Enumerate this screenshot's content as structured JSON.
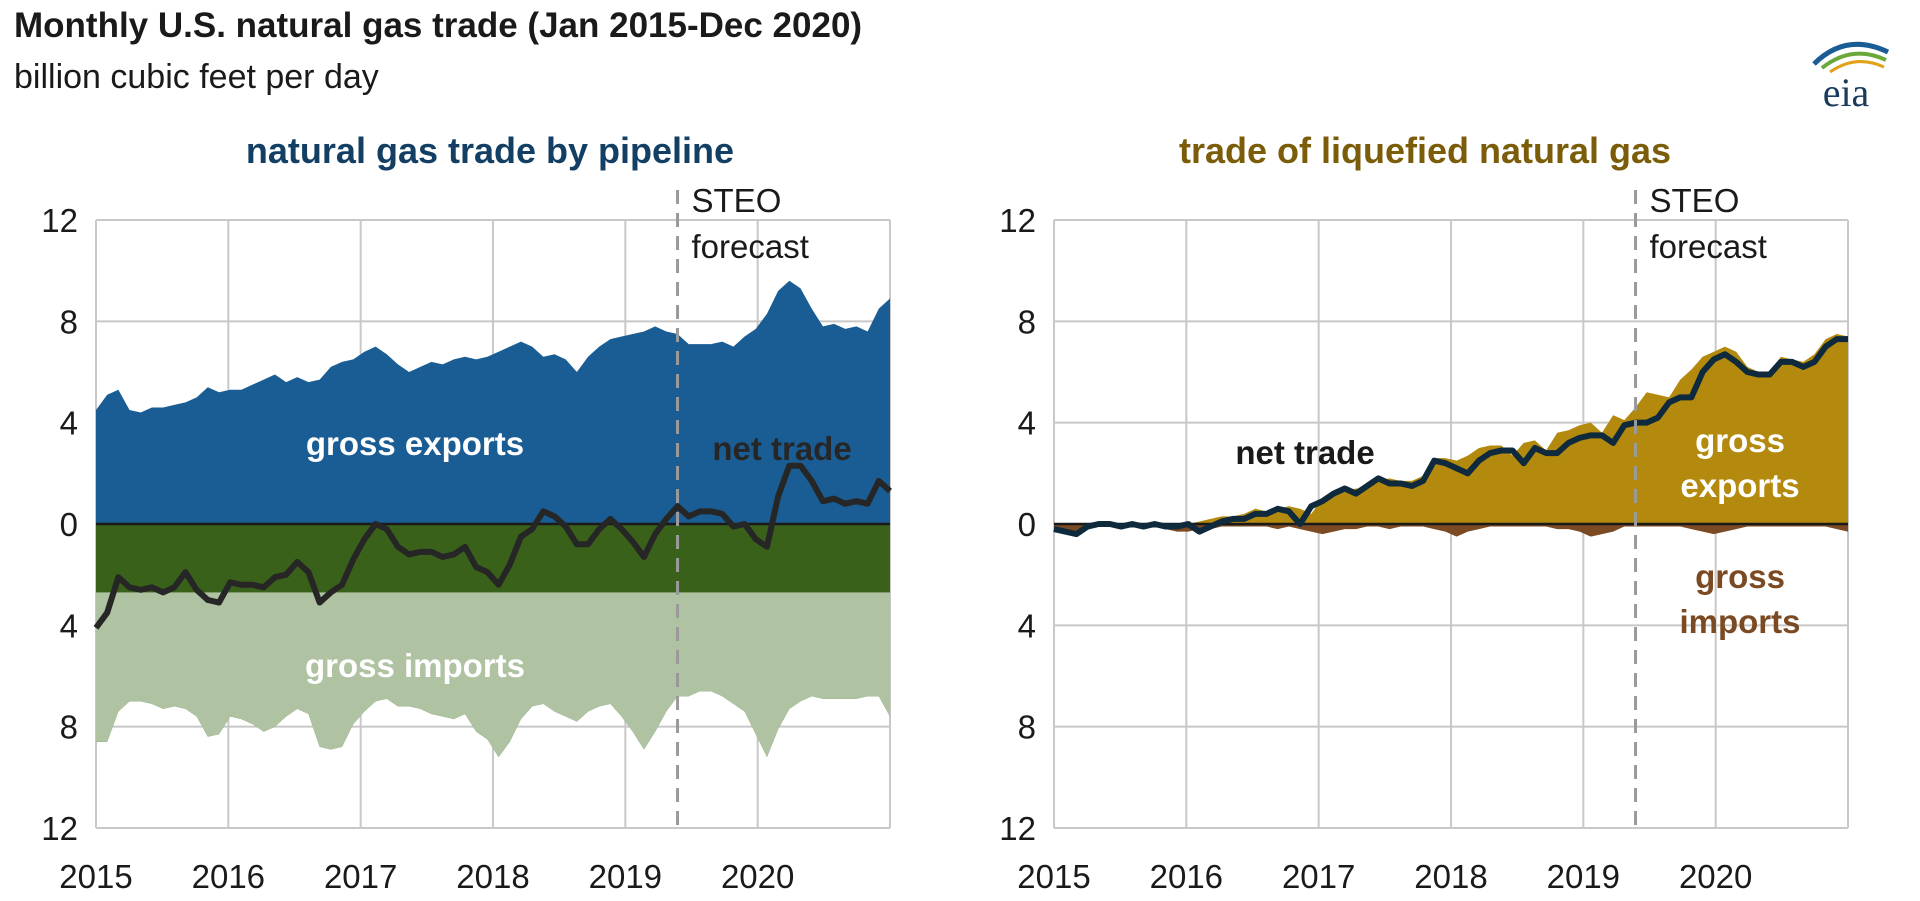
{
  "header": {
    "title": "Monthly U.S. natural gas trade (Jan 2015-Dec 2020)",
    "subtitle": "billion cubic feet per day",
    "logo_text": "eia"
  },
  "colors": {
    "pipeline_exports": "#1a5d94",
    "pipeline_imports": "#3a6119",
    "pipeline_imports_pale": "#afc2a2",
    "lng_exports": "#b38a0d",
    "lng_imports": "#7b4a22",
    "net_trade_pipeline": "#262626",
    "net_trade_lng": "#0f2a3d",
    "grid": "#c8c8c8",
    "forecast_line": "#9a9a9a",
    "pipeline_title": "#123f63",
    "lng_title": "#7a5c09"
  },
  "chart_data": [
    {
      "type": "area",
      "title": "natural gas trade by pipeline",
      "x_start": "2015-01",
      "x_end": "2020-12",
      "xlim": [
        2015,
        2021
      ],
      "ylim": [
        -12,
        12
      ],
      "y_ticks": [
        12,
        8,
        4,
        0,
        4,
        8,
        12
      ],
      "x_ticks": [
        "2015",
        "2016",
        "2017",
        "2018",
        "2019",
        "2020"
      ],
      "grid": true,
      "forecast_start": "2019-05",
      "forecast_label": [
        "STEO",
        "forecast"
      ],
      "labels": {
        "exports": "gross exports",
        "imports": "gross imports",
        "net": "net trade"
      },
      "series": [
        {
          "name": "gross exports",
          "values": [
            4.5,
            5.1,
            5.3,
            4.5,
            4.4,
            4.6,
            4.6,
            4.7,
            4.8,
            5.0,
            5.4,
            5.2,
            5.3,
            5.3,
            5.5,
            5.7,
            5.9,
            5.6,
            5.8,
            5.6,
            5.7,
            6.2,
            6.4,
            6.5,
            6.8,
            7.0,
            6.7,
            6.3,
            6.0,
            6.2,
            6.4,
            6.3,
            6.5,
            6.6,
            6.5,
            6.6,
            6.8,
            7.0,
            7.2,
            7.0,
            6.6,
            6.7,
            6.5,
            6.0,
            6.6,
            7.0,
            7.3,
            7.4,
            7.5,
            7.6,
            7.8,
            7.6,
            7.5,
            7.1,
            7.1,
            7.1,
            7.2,
            7.0,
            7.4,
            7.7,
            8.3,
            9.2,
            9.6,
            9.3,
            8.5,
            7.8,
            7.9,
            7.7,
            7.8,
            7.6,
            8.5,
            8.9
          ]
        },
        {
          "name": "gross imports",
          "values": [
            8.6,
            8.6,
            7.4,
            7.0,
            7.0,
            7.1,
            7.3,
            7.2,
            7.3,
            7.6,
            8.4,
            8.3,
            7.6,
            7.7,
            7.9,
            8.2,
            8.0,
            7.6,
            7.3,
            7.5,
            8.8,
            8.9,
            8.8,
            7.9,
            7.4,
            7.0,
            6.9,
            7.2,
            7.2,
            7.3,
            7.5,
            7.6,
            7.7,
            7.5,
            8.2,
            8.5,
            9.2,
            8.6,
            7.7,
            7.2,
            7.1,
            7.4,
            7.6,
            7.8,
            7.4,
            7.2,
            7.1,
            7.6,
            8.2,
            8.9,
            8.2,
            7.4,
            6.8,
            6.8,
            6.6,
            6.6,
            6.8,
            7.1,
            7.4,
            8.3,
            9.2,
            8.1,
            7.3,
            7.0,
            6.8,
            6.9,
            6.9,
            6.9,
            6.9,
            6.8,
            6.8,
            7.6
          ]
        },
        {
          "name": "net trade",
          "values": [
            -4.1,
            -3.5,
            -2.1,
            -2.5,
            -2.6,
            -2.5,
            -2.7,
            -2.5,
            -1.9,
            -2.6,
            -3.0,
            -3.1,
            -2.3,
            -2.4,
            -2.4,
            -2.5,
            -2.1,
            -2.0,
            -1.5,
            -1.9,
            -3.1,
            -2.7,
            -2.4,
            -1.4,
            -0.6,
            0.0,
            -0.2,
            -0.9,
            -1.2,
            -1.1,
            -1.1,
            -1.3,
            -1.2,
            -0.9,
            -1.7,
            -1.9,
            -2.4,
            -1.6,
            -0.5,
            -0.2,
            0.5,
            0.3,
            -0.1,
            -0.8,
            -0.8,
            -0.2,
            0.2,
            -0.2,
            -0.7,
            -1.3,
            -0.4,
            0.2,
            0.7,
            0.3,
            0.5,
            0.5,
            0.4,
            -0.1,
            0.0,
            -0.6,
            -0.9,
            1.1,
            2.3,
            2.3,
            1.7,
            0.9,
            1.0,
            0.8,
            0.9,
            0.8,
            1.7,
            1.3
          ]
        }
      ]
    },
    {
      "type": "area",
      "title": "trade of liquefied natural gas",
      "x_start": "2015-01",
      "x_end": "2020-12",
      "xlim": [
        2015,
        2021
      ],
      "ylim": [
        -12,
        12
      ],
      "y_ticks": [
        12,
        8,
        4,
        0,
        4,
        8,
        12
      ],
      "x_ticks": [
        "2015",
        "2016",
        "2017",
        "2018",
        "2019",
        "2020"
      ],
      "grid": true,
      "forecast_start": "2019-05",
      "forecast_label": [
        "STEO",
        "forecast"
      ],
      "labels": {
        "exports": "gross exports",
        "imports": "gross imports",
        "net": "net trade"
      },
      "series": [
        {
          "name": "gross exports",
          "values": [
            0.0,
            0.0,
            0.0,
            0.0,
            0.0,
            0.0,
            0.0,
            0.0,
            0.0,
            0.0,
            0.0,
            0.0,
            0.0,
            0.1,
            0.2,
            0.3,
            0.3,
            0.4,
            0.6,
            0.5,
            0.6,
            0.7,
            0.6,
            0.4,
            1.0,
            1.1,
            1.3,
            1.4,
            1.4,
            1.7,
            1.8,
            1.7,
            1.7,
            1.9,
            2.6,
            2.6,
            2.5,
            2.7,
            3.0,
            3.1,
            3.1,
            2.7,
            3.2,
            3.3,
            2.9,
            3.6,
            3.7,
            3.9,
            4.0,
            3.6,
            4.3,
            4.1,
            4.6,
            5.2,
            5.1,
            5.0,
            5.7,
            6.1,
            6.6,
            6.8,
            7.0,
            6.8,
            6.2,
            6.0,
            6.0,
            6.6,
            6.5,
            6.4,
            6.7,
            7.3,
            7.5,
            7.4
          ]
        },
        {
          "name": "gross imports",
          "values": [
            0.3,
            0.3,
            0.4,
            0.1,
            0.1,
            0.1,
            0.2,
            0.1,
            0.1,
            0.1,
            0.2,
            0.3,
            0.3,
            0.2,
            0.2,
            0.1,
            0.1,
            0.1,
            0.1,
            0.1,
            0.2,
            0.1,
            0.2,
            0.3,
            0.4,
            0.3,
            0.2,
            0.2,
            0.1,
            0.1,
            0.2,
            0.1,
            0.1,
            0.1,
            0.2,
            0.3,
            0.5,
            0.3,
            0.2,
            0.1,
            0.1,
            0.1,
            0.1,
            0.1,
            0.1,
            0.2,
            0.2,
            0.3,
            0.5,
            0.4,
            0.3,
            0.1,
            0.1,
            0.1,
            0.1,
            0.1,
            0.1,
            0.2,
            0.3,
            0.4,
            0.3,
            0.2,
            0.1,
            0.1,
            0.1,
            0.1,
            0.1,
            0.1,
            0.1,
            0.1,
            0.2,
            0.3
          ]
        },
        {
          "name": "net trade",
          "values": [
            -0.2,
            -0.3,
            -0.4,
            -0.1,
            0.0,
            0.0,
            -0.1,
            0.0,
            -0.1,
            0.0,
            -0.1,
            -0.1,
            0.0,
            -0.3,
            -0.1,
            0.1,
            0.2,
            0.2,
            0.4,
            0.4,
            0.6,
            0.5,
            0.0,
            0.7,
            0.9,
            1.2,
            1.4,
            1.2,
            1.5,
            1.8,
            1.6,
            1.6,
            1.5,
            1.7,
            2.5,
            2.4,
            2.2,
            2.0,
            2.5,
            2.8,
            2.9,
            2.9,
            2.4,
            3.0,
            2.8,
            2.8,
            3.2,
            3.4,
            3.5,
            3.5,
            3.2,
            3.9,
            4.0,
            4.0,
            4.2,
            4.8,
            5.0,
            5.0,
            6.0,
            6.5,
            6.7,
            6.4,
            6.0,
            5.9,
            5.9,
            6.4,
            6.4,
            6.2,
            6.4,
            7.0,
            7.3,
            7.3
          ]
        }
      ]
    }
  ]
}
